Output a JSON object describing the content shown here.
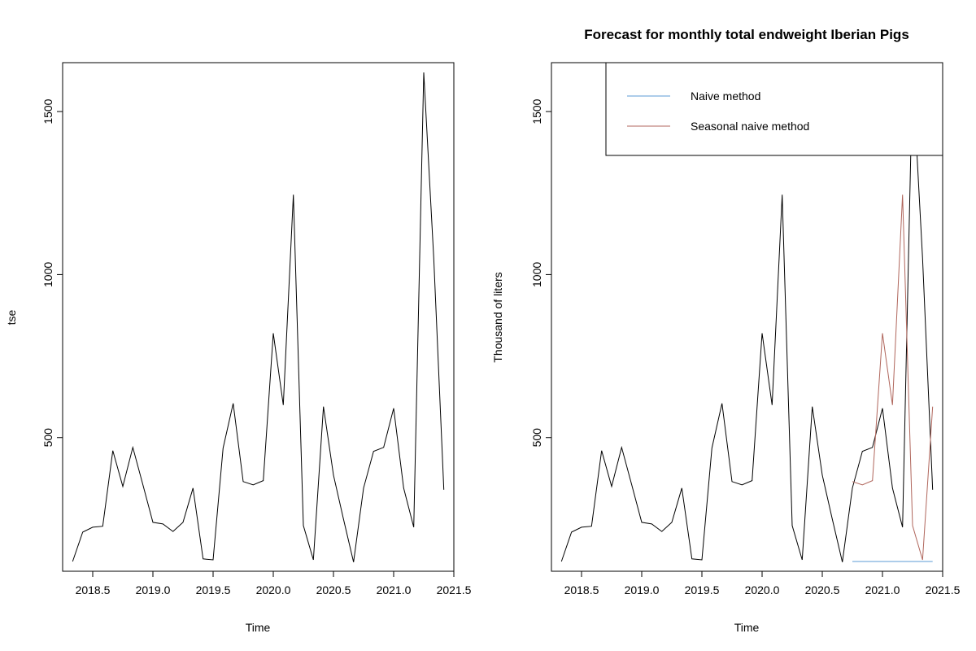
{
  "chart_data": [
    {
      "type": "line",
      "title": "",
      "xlabel": "Time",
      "ylabel": "tse",
      "xlim": [
        2018.25,
        2021.5
      ],
      "ylim": [
        90,
        1650
      ],
      "xticks": [
        "2018.5",
        "2019.0",
        "2019.5",
        "2020.0",
        "2020.5",
        "2021.0",
        "2021.5"
      ],
      "xtick_values": [
        2018.5,
        2019.0,
        2019.5,
        2020.0,
        2020.5,
        2021.0,
        2021.5
      ],
      "yticks": [
        "500",
        "1000",
        "1500"
      ],
      "ytick_values": [
        500,
        1000,
        1500
      ],
      "series": [
        {
          "color": "#000000",
          "x": [
            2018.333,
            2018.417,
            2018.5,
            2018.583,
            2018.667,
            2018.75,
            2018.833,
            2018.917,
            2019.0,
            2019.083,
            2019.167,
            2019.25,
            2019.333,
            2019.417,
            2019.5,
            2019.583,
            2019.667,
            2019.75,
            2019.833,
            2019.917,
            2020.0,
            2020.083,
            2020.167,
            2020.25,
            2020.333,
            2020.417,
            2020.5,
            2020.583,
            2020.667,
            2020.75,
            2020.833,
            2020.917,
            2021.0,
            2021.083,
            2021.167,
            2021.25,
            2021.333,
            2021.417
          ],
          "values": [
            120,
            210,
            225,
            228,
            460,
            350,
            470,
            355,
            240,
            235,
            212,
            240,
            345,
            128,
            125,
            468,
            605,
            365,
            355,
            368,
            820,
            600,
            1245,
            230,
            125,
            595,
            385,
            250,
            118,
            345,
            458,
            470,
            590,
            345,
            225,
            1620,
            1050,
            340
          ]
        }
      ]
    },
    {
      "type": "line",
      "title": "Forecast for monthly total endweight Iberian Pigs",
      "xlabel": "Time",
      "ylabel": "Thousand of liters",
      "xlim": [
        2018.25,
        2021.5
      ],
      "ylim": [
        90,
        1650
      ],
      "xticks": [
        "2018.5",
        "2019.0",
        "2019.5",
        "2020.0",
        "2020.5",
        "2021.0",
        "2021.5"
      ],
      "xtick_values": [
        2018.5,
        2019.0,
        2019.5,
        2020.0,
        2020.5,
        2021.0,
        2021.5
      ],
      "yticks": [
        "500",
        "1000",
        "1500"
      ],
      "ytick_values": [
        500,
        1000,
        1500
      ],
      "legend": {
        "position": "top-right",
        "entries": [
          {
            "name": "Naive method",
            "color": "#5b9bd5"
          },
          {
            "name": "Seasonal naive method",
            "color": "#b0665c"
          }
        ]
      },
      "series": [
        {
          "color": "#000000",
          "x": [
            2018.333,
            2018.417,
            2018.5,
            2018.583,
            2018.667,
            2018.75,
            2018.833,
            2018.917,
            2019.0,
            2019.083,
            2019.167,
            2019.25,
            2019.333,
            2019.417,
            2019.5,
            2019.583,
            2019.667,
            2019.75,
            2019.833,
            2019.917,
            2020.0,
            2020.083,
            2020.167,
            2020.25,
            2020.333,
            2020.417,
            2020.5,
            2020.583,
            2020.667,
            2020.75,
            2020.833,
            2020.917,
            2021.0,
            2021.083,
            2021.167,
            2021.25,
            2021.333,
            2021.417
          ],
          "values": [
            120,
            210,
            225,
            228,
            460,
            350,
            470,
            355,
            240,
            235,
            212,
            240,
            345,
            128,
            125,
            468,
            605,
            365,
            355,
            368,
            820,
            600,
            1245,
            230,
            125,
            595,
            385,
            250,
            118,
            345,
            458,
            470,
            590,
            345,
            225,
            1620,
            1050,
            340
          ]
        },
        {
          "name": "Naive method",
          "color": "#5b9bd5",
          "x": [
            2020.75,
            2021.417
          ],
          "values": [
            120,
            120
          ]
        },
        {
          "name": "Seasonal naive method",
          "color": "#b0665c",
          "x": [
            2020.75,
            2020.833,
            2020.917,
            2021.0,
            2021.083,
            2021.167,
            2021.25,
            2021.333,
            2021.417
          ],
          "values": [
            365,
            355,
            368,
            820,
            600,
            1245,
            230,
            125,
            595
          ]
        }
      ]
    }
  ]
}
